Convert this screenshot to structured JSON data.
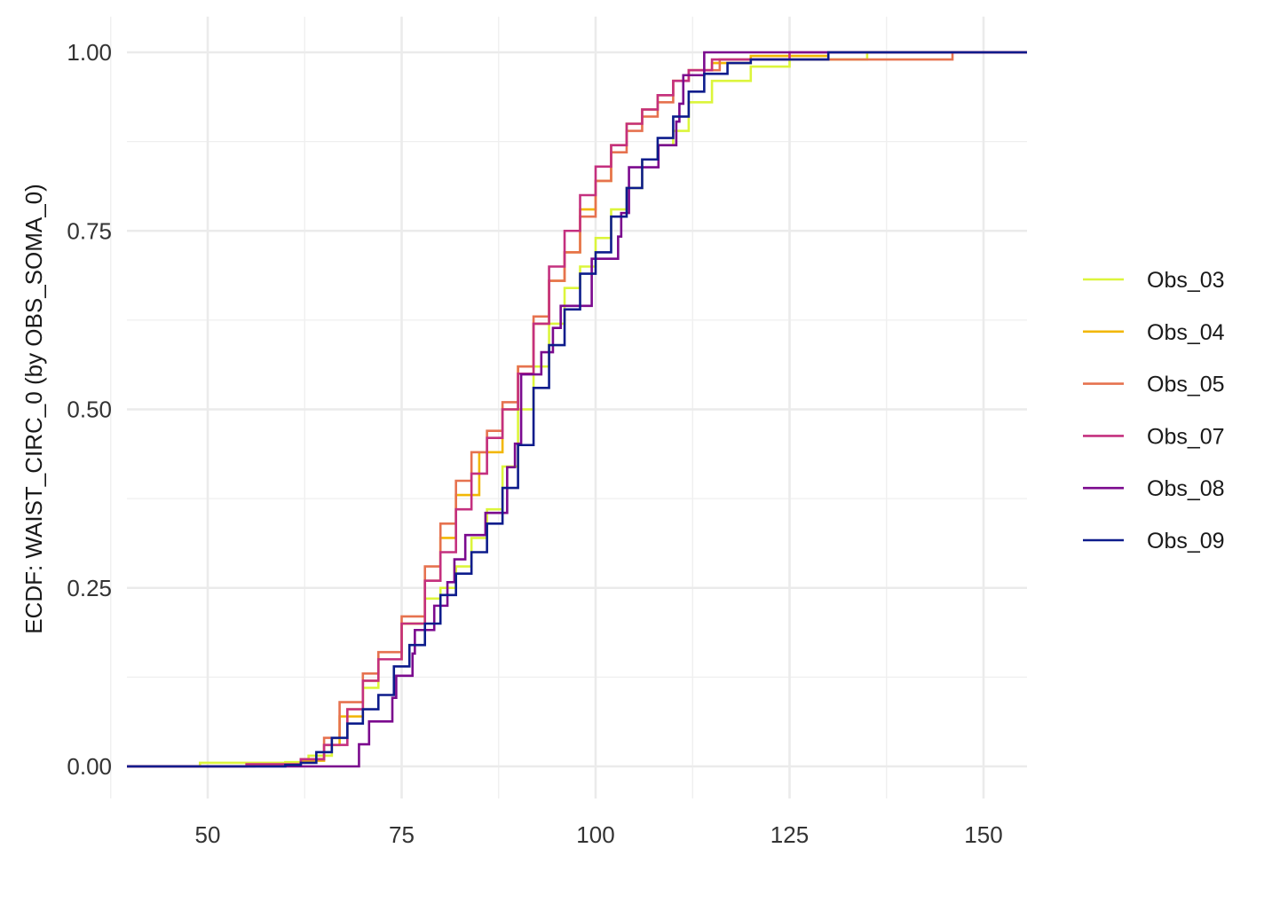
{
  "chart_data": {
    "type": "line",
    "subtype": "ecdf-step",
    "title": "",
    "xlabel": "",
    "ylabel": "ECDF: WAIST_CIRC_0 (by OBS_SOMA_0)",
    "xlim": [
      39.6,
      155.6
    ],
    "ylim": [
      -0.045,
      1.05
    ],
    "xticks": [
      50,
      75,
      100,
      125,
      150
    ],
    "xtick_labels": [
      "50",
      "75",
      "100",
      "125",
      "150"
    ],
    "yticks": [
      0,
      0.25,
      0.5,
      0.75,
      1
    ],
    "ytick_labels": [
      "0.00",
      "0.25",
      "0.50",
      "0.75",
      "1.00"
    ],
    "grid": true,
    "legend_position": "right",
    "series": [
      {
        "name": "Obs_03",
        "color": "#dcf53b",
        "step": false,
        "points": [
          [
            49,
            0.005
          ],
          [
            60,
            0.006
          ],
          [
            63,
            0.015
          ],
          [
            66,
            0.04
          ],
          [
            68,
            0.08
          ],
          [
            70,
            0.11
          ],
          [
            72,
            0.15
          ],
          [
            75,
            0.2
          ],
          [
            78,
            0.235
          ],
          [
            80,
            0.25
          ],
          [
            82,
            0.28
          ],
          [
            84,
            0.32
          ],
          [
            86,
            0.36
          ],
          [
            88,
            0.42
          ],
          [
            90,
            0.5
          ],
          [
            92,
            0.56
          ],
          [
            94,
            0.62
          ],
          [
            96,
            0.67
          ],
          [
            98,
            0.7
          ],
          [
            100,
            0.74
          ],
          [
            102,
            0.78
          ],
          [
            104,
            0.81
          ],
          [
            106,
            0.85
          ],
          [
            108,
            0.87
          ],
          [
            110,
            0.89
          ],
          [
            112,
            0.93
          ],
          [
            115,
            0.96
          ],
          [
            120,
            0.98
          ],
          [
            125,
            0.99
          ],
          [
            135,
            1.0
          ]
        ]
      },
      {
        "name": "Obs_04",
        "color": "#f2b705",
        "step": false,
        "points": [
          [
            55,
            0.002
          ],
          [
            62,
            0.008
          ],
          [
            65,
            0.03
          ],
          [
            67,
            0.07
          ],
          [
            70,
            0.12
          ],
          [
            72,
            0.15
          ],
          [
            75,
            0.2
          ],
          [
            78,
            0.26
          ],
          [
            80,
            0.32
          ],
          [
            82,
            0.38
          ],
          [
            85,
            0.44
          ],
          [
            88,
            0.5
          ],
          [
            90,
            0.56
          ],
          [
            92,
            0.62
          ],
          [
            94,
            0.68
          ],
          [
            96,
            0.72
          ],
          [
            98,
            0.78
          ],
          [
            100,
            0.82
          ],
          [
            102,
            0.87
          ],
          [
            104,
            0.9
          ],
          [
            106,
            0.92
          ],
          [
            108,
            0.94
          ],
          [
            110,
            0.96
          ],
          [
            112,
            0.975
          ],
          [
            115,
            0.985
          ],
          [
            120,
            0.995
          ],
          [
            130,
            1.0
          ]
        ]
      },
      {
        "name": "Obs_05",
        "color": "#e6724f",
        "step": false,
        "points": [
          [
            56,
            0.002
          ],
          [
            62,
            0.01
          ],
          [
            65,
            0.04
          ],
          [
            67,
            0.09
          ],
          [
            70,
            0.13
          ],
          [
            72,
            0.16
          ],
          [
            75,
            0.21
          ],
          [
            78,
            0.28
          ],
          [
            80,
            0.34
          ],
          [
            82,
            0.4
          ],
          [
            84,
            0.44
          ],
          [
            86,
            0.47
          ],
          [
            88,
            0.51
          ],
          [
            90,
            0.56
          ],
          [
            92,
            0.63
          ],
          [
            94,
            0.68
          ],
          [
            96,
            0.72
          ],
          [
            98,
            0.77
          ],
          [
            100,
            0.82
          ],
          [
            102,
            0.86
          ],
          [
            104,
            0.89
          ],
          [
            106,
            0.91
          ],
          [
            108,
            0.93
          ],
          [
            110,
            0.96
          ],
          [
            112,
            0.975
          ],
          [
            116,
            0.99
          ],
          [
            146,
            1.0
          ]
        ]
      },
      {
        "name": "Obs_07",
        "color": "#c4307f",
        "step": false,
        "points": [
          [
            55,
            0.003
          ],
          [
            62,
            0.01
          ],
          [
            65,
            0.03
          ],
          [
            68,
            0.08
          ],
          [
            70,
            0.12
          ],
          [
            72,
            0.15
          ],
          [
            75,
            0.2
          ],
          [
            78,
            0.26
          ],
          [
            80,
            0.3
          ],
          [
            82,
            0.36
          ],
          [
            84,
            0.41
          ],
          [
            86,
            0.46
          ],
          [
            88,
            0.5
          ],
          [
            90,
            0.55
          ],
          [
            92,
            0.62
          ],
          [
            94,
            0.7
          ],
          [
            96,
            0.75
          ],
          [
            98,
            0.8
          ],
          [
            100,
            0.84
          ],
          [
            102,
            0.87
          ],
          [
            104,
            0.9
          ],
          [
            106,
            0.92
          ],
          [
            108,
            0.94
          ],
          [
            110,
            0.96
          ],
          [
            112,
            0.975
          ],
          [
            115,
            0.99
          ],
          [
            125,
            1.0
          ]
        ]
      },
      {
        "name": "Obs_08",
        "color": "#7b0a8e",
        "step": true,
        "points": [
          [
            69.5,
            0.031
          ],
          [
            70.8,
            0.063
          ],
          [
            73.8,
            0.096
          ],
          [
            74.3,
            0.127
          ],
          [
            76.4,
            0.158
          ],
          [
            76.7,
            0.191
          ],
          [
            79.2,
            0.225
          ],
          [
            80.9,
            0.258
          ],
          [
            81.8,
            0.29
          ],
          [
            83.2,
            0.324
          ],
          [
            85.8,
            0.355
          ],
          [
            88.6,
            0.419
          ],
          [
            89.6,
            0.452
          ],
          [
            90.4,
            0.549
          ],
          [
            93.0,
            0.58
          ],
          [
            94.5,
            0.614
          ],
          [
            95.5,
            0.645
          ],
          [
            99.5,
            0.711
          ],
          [
            102.9,
            0.742
          ],
          [
            103.3,
            0.775
          ],
          [
            104.3,
            0.839
          ],
          [
            108.1,
            0.87
          ],
          [
            110.4,
            0.903
          ],
          [
            110.8,
            0.928
          ],
          [
            111.3,
            0.968
          ],
          [
            114.0,
            1.0
          ]
        ]
      },
      {
        "name": "Obs_09",
        "color": "#0d1c8c",
        "step": false,
        "points": [
          [
            60,
            0.002
          ],
          [
            62,
            0.005
          ],
          [
            64,
            0.02
          ],
          [
            66,
            0.04
          ],
          [
            68,
            0.06
          ],
          [
            70,
            0.08
          ],
          [
            72,
            0.1
          ],
          [
            74,
            0.14
          ],
          [
            76,
            0.17
          ],
          [
            78,
            0.2
          ],
          [
            80,
            0.24
          ],
          [
            82,
            0.27
          ],
          [
            84,
            0.3
          ],
          [
            86,
            0.34
          ],
          [
            88,
            0.39
          ],
          [
            90,
            0.45
          ],
          [
            92,
            0.53
          ],
          [
            94,
            0.59
          ],
          [
            96,
            0.64
          ],
          [
            98,
            0.69
          ],
          [
            100,
            0.72
          ],
          [
            102,
            0.77
          ],
          [
            104,
            0.81
          ],
          [
            106,
            0.85
          ],
          [
            108,
            0.88
          ],
          [
            110,
            0.91
          ],
          [
            112,
            0.945
          ],
          [
            114,
            0.97
          ],
          [
            117,
            0.985
          ],
          [
            120,
            0.99
          ],
          [
            130,
            1.0
          ]
        ]
      }
    ]
  }
}
